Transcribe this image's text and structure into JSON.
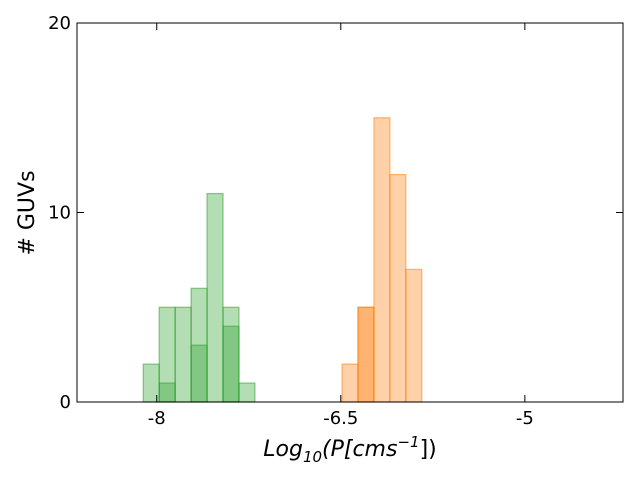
{
  "chart_data": {
    "type": "bar",
    "title": "",
    "xlabel": "Log",
    "xlabel_sub": "10",
    "xlabel_rest": "(P[cms",
    "xlabel_sup": "−1",
    "xlabel_end": "])",
    "ylabel": "# GUVs",
    "xlim": [
      -8.65,
      -4.2
    ],
    "ylim": [
      0,
      20
    ],
    "x_ticks": [
      {
        "value": -8,
        "label": "-8"
      },
      {
        "value": -6.5,
        "label": "-6.5"
      },
      {
        "value": -5,
        "label": "-5"
      }
    ],
    "y_ticks": [
      {
        "value": 0,
        "label": "0"
      },
      {
        "value": 10,
        "label": "10"
      },
      {
        "value": 20,
        "label": "20"
      }
    ],
    "grid": false,
    "legend": "none",
    "bin_width": 0.13,
    "series": [
      {
        "color": "#2ca02c",
        "bin_starts": [
          -8.11,
          -7.98,
          -7.85,
          -7.72,
          -7.59,
          -7.46
        ],
        "values": [
          2,
          5,
          5,
          6,
          11,
          5
        ],
        "overlay_starts": [
          -7.98,
          -7.72,
          -7.46,
          -7.33
        ],
        "overlay_values": [
          1,
          3,
          4,
          1
        ]
      },
      {
        "color": "#ff7f0e",
        "bin_starts": [
          -6.49,
          -6.36,
          -6.23,
          -6.1,
          -5.97
        ],
        "values": [
          2,
          5,
          15,
          12,
          7
        ],
        "overlay_starts": [
          -6.36
        ],
        "overlay_values": [
          5
        ]
      }
    ]
  }
}
